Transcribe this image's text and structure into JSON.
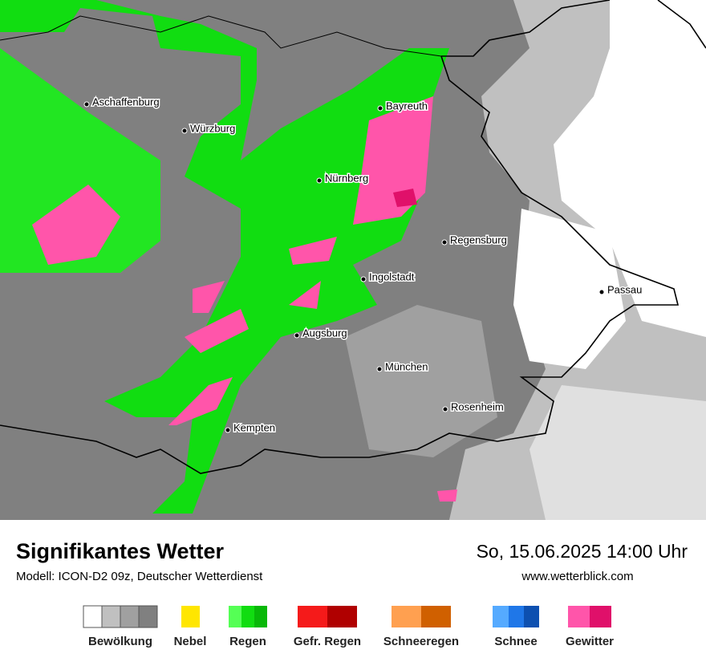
{
  "map": {
    "cities": [
      {
        "label": "Aschaffenburg"
      },
      {
        "label": "Würzburg"
      },
      {
        "label": "Bayreuth"
      },
      {
        "label": "Nürnberg"
      },
      {
        "label": "Regensburg"
      },
      {
        "label": "Ingolstadt"
      },
      {
        "label": "Passau"
      },
      {
        "label": "Augsburg"
      },
      {
        "label": "München"
      },
      {
        "label": "Rosenheim"
      },
      {
        "label": "Kempten"
      }
    ]
  },
  "footer": {
    "title": "Signifikantes Wetter",
    "subtitle": "Modell: ICON-D2 09z, Deutscher Wetterdienst",
    "datetime": "So, 15.06.2025 14:00 Uhr",
    "url": "www.wetterblick.com"
  },
  "legend": [
    {
      "label": "Bewölkung"
    },
    {
      "label": "Nebel"
    },
    {
      "label": "Regen"
    },
    {
      "label": "Gefr. Regen"
    },
    {
      "label": "Schneeregen"
    },
    {
      "label": "Schnee"
    },
    {
      "label": "Gewitter"
    }
  ]
}
